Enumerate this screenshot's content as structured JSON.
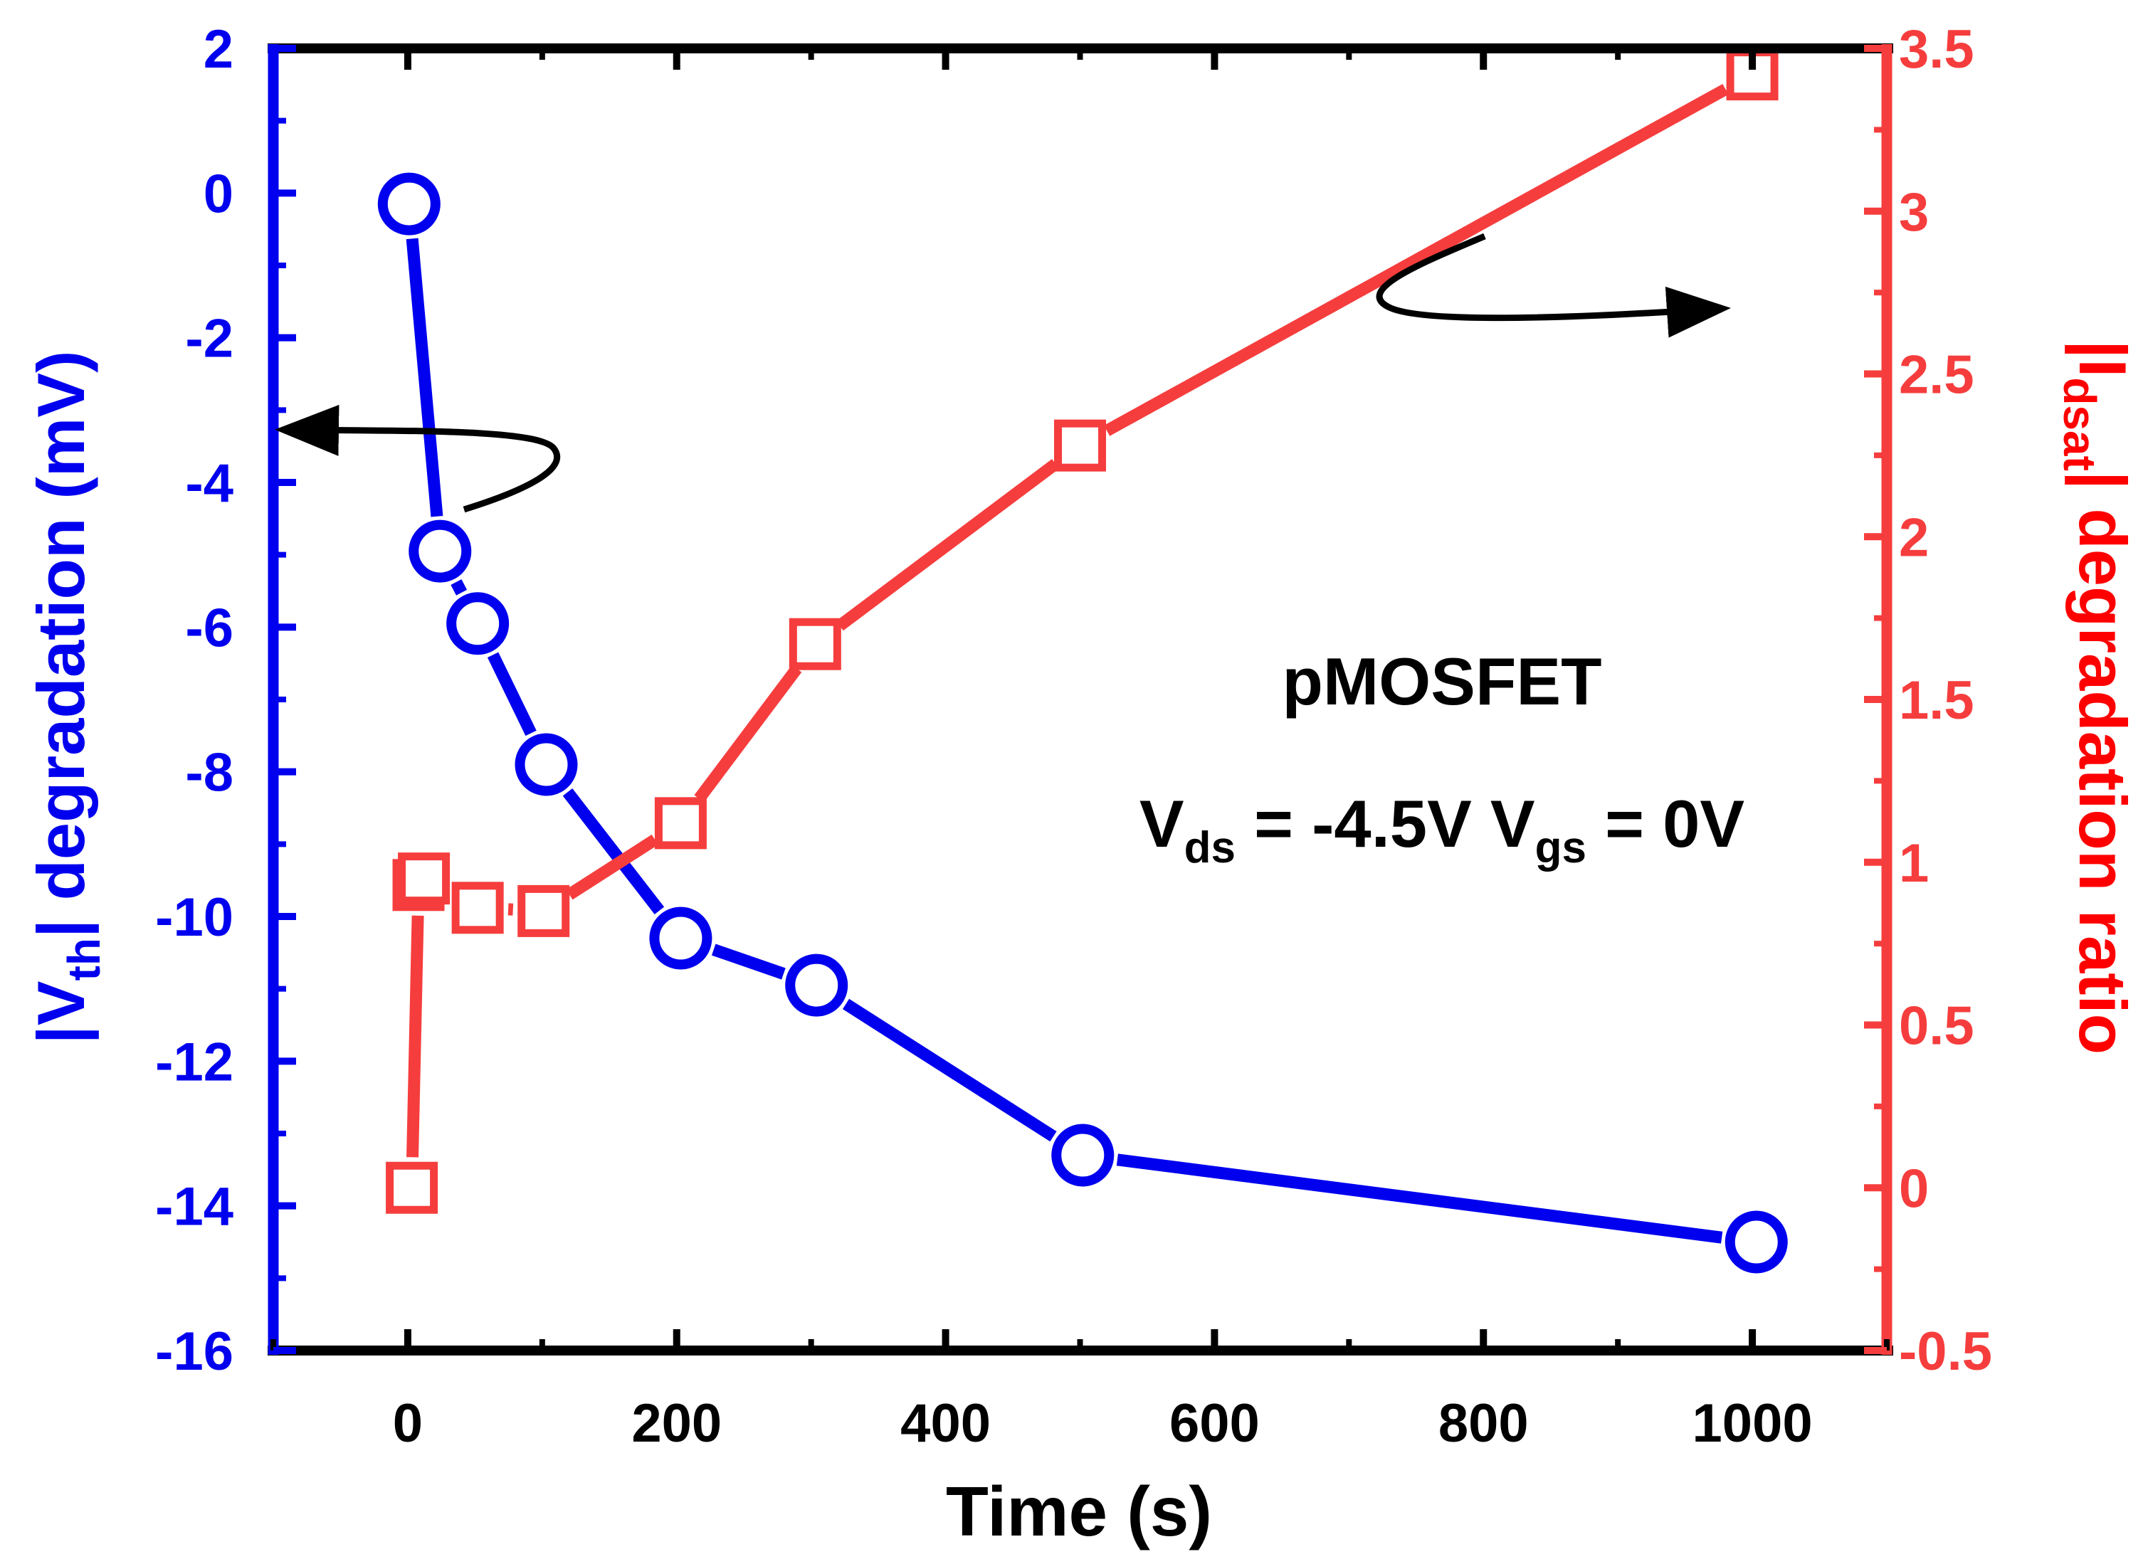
{
  "chart_data": {
    "type": "line",
    "xlabel": "Time (s)",
    "xlim": [
      -100,
      1100
    ],
    "xticks": [
      0,
      200,
      400,
      600,
      800,
      1000
    ],
    "x_tick_labels": [
      "0",
      "200",
      "400",
      "600",
      "800",
      "1000"
    ],
    "left_axis": {
      "label_parts": [
        "|V",
        "th",
        "| degradation (mV)"
      ],
      "ylim": [
        -16,
        2
      ],
      "ticks": [
        2,
        0,
        -2,
        -4,
        -6,
        -8,
        -10,
        -12,
        -14,
        -16
      ],
      "tick_labels": [
        "2",
        "0",
        "-2",
        "-4",
        "-6",
        "-8",
        "-10",
        "-12",
        "-14",
        "-16"
      ],
      "color": "#0000ee"
    },
    "right_axis": {
      "label_parts": [
        "|I",
        "dsat",
        "| degradation ratio"
      ],
      "ylim": [
        -0.5,
        3.5
      ],
      "ticks": [
        -0.5,
        0,
        0.5,
        1,
        1.5,
        2,
        2.5,
        3,
        3.5
      ],
      "tick_labels": [
        "-0.5",
        "0",
        "0.5",
        "1",
        "1.5",
        "2",
        "2.5",
        "3",
        "3.5"
      ],
      "color": "#f63d3d"
    },
    "series": [
      {
        "name": "Vth degradation",
        "axis": "left",
        "marker": "circle",
        "x": [
          1,
          24,
          52,
          103,
          203,
          304,
          502,
          1003
        ],
        "y": [
          -0.15,
          -4.95,
          -5.95,
          -7.9,
          -10.3,
          -10.95,
          -13.3,
          -14.5
        ]
      },
      {
        "name": "Idsat degradation ratio",
        "axis": "right",
        "marker": "square",
        "x": [
          3,
          8,
          12,
          52,
          101,
          203,
          303,
          500,
          1000
        ],
        "y": [
          0.0,
          0.93,
          0.95,
          0.86,
          0.85,
          1.12,
          1.67,
          2.28,
          3.42
        ]
      }
    ],
    "annotations": {
      "device": "pMOSFET",
      "bias": {
        "v1": "V",
        "v1_sub": "ds",
        "v1_rest": " = -4.5V ",
        "v2": "V",
        "v2_sub": "gs",
        "v2_rest": " = 0V"
      }
    }
  }
}
